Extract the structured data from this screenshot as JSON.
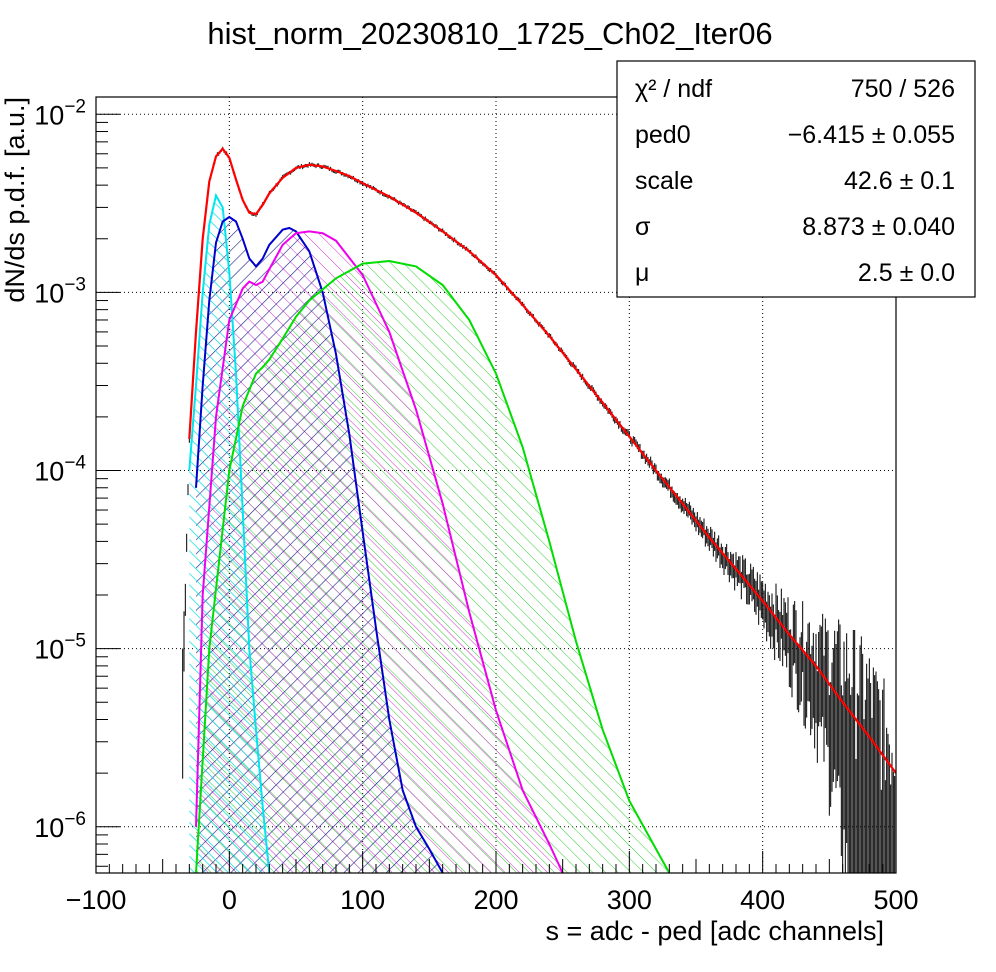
{
  "chart_data": {
    "type": "line",
    "title": "hist_norm_20230810_1725_Ch02_Iter06",
    "xlabel": "s = adc - ped [adc channels]",
    "ylabel": "dN/ds p.d.f. [a.u.]",
    "xlim": [
      -100,
      500
    ],
    "ylim": [
      5.5e-07,
      0.0125
    ],
    "yscale": "log",
    "grid": true,
    "x_ticks": [
      {
        "value": -100,
        "label": "−100"
      },
      {
        "value": 0,
        "label": "0"
      },
      {
        "value": 100,
        "label": "100"
      },
      {
        "value": 200,
        "label": "200"
      },
      {
        "value": 300,
        "label": "300"
      },
      {
        "value": 400,
        "label": "400"
      },
      {
        "value": 500,
        "label": "500"
      }
    ],
    "y_ticks": [
      {
        "value": 0.01,
        "base": "10",
        "exp": "−2"
      },
      {
        "value": 0.001,
        "base": "10",
        "exp": "−3"
      },
      {
        "value": 0.0001,
        "base": "10",
        "exp": "−4"
      },
      {
        "value": 1e-05,
        "base": "10",
        "exp": "−5"
      },
      {
        "value": 1e-06,
        "base": "10",
        "exp": "−6"
      }
    ],
    "stats_box": {
      "placement": "top-right",
      "rows": [
        {
          "label": "χ² / ndf",
          "value": "750 / 526"
        },
        {
          "label": "ped0",
          "value": "−6.415 ± 0.055"
        },
        {
          "label": "scale",
          "value": "42.6 ± 0.1"
        },
        {
          "label": "σ",
          "value": "8.873 ± 0.040"
        },
        {
          "label": "μ",
          "value": "2.5 ± 0.0"
        }
      ]
    },
    "series": [
      {
        "role": "data",
        "color": "#000000",
        "x": [
          -35,
          -30,
          -25,
          -20,
          -15,
          -10,
          -5,
          0,
          5,
          10,
          15,
          20,
          25,
          30,
          40,
          50,
          60,
          70,
          80,
          90,
          100,
          120,
          140,
          160,
          180,
          200,
          220,
          240,
          260,
          280,
          300,
          320,
          340,
          360,
          380,
          400,
          420,
          440,
          460,
          480,
          500
        ],
        "y": [
          6e-06,
          0.00015,
          0.0006,
          0.002,
          0.0042,
          0.0058,
          0.0064,
          0.0057,
          0.0043,
          0.0033,
          0.0028,
          0.00275,
          0.0031,
          0.0036,
          0.0044,
          0.005,
          0.0052,
          0.0051,
          0.0048,
          0.0045,
          0.0041,
          0.00345,
          0.0028,
          0.0022,
          0.0017,
          0.00125,
          0.00085,
          0.00057,
          0.00037,
          0.00024,
          0.000155,
          0.0001,
          6.5e-05,
          4.2e-05,
          2.8e-05,
          1.85e-05,
          1.2e-05,
          8e-06,
          5e-06,
          3.2e-06,
          1.5e-06
        ]
      },
      {
        "role": "fit",
        "color": "#ff0000",
        "x": [
          -30,
          -25,
          -20,
          -15,
          -10,
          -5,
          0,
          5,
          10,
          15,
          20,
          25,
          30,
          40,
          50,
          60,
          70,
          80,
          90,
          100,
          120,
          140,
          160,
          180,
          200,
          220,
          240,
          260,
          280,
          300,
          320,
          340,
          360,
          380,
          400,
          420,
          440,
          460,
          480,
          500
        ],
        "y": [
          0.00015,
          0.0006,
          0.002,
          0.0042,
          0.0058,
          0.0064,
          0.0057,
          0.0043,
          0.0033,
          0.0028,
          0.00275,
          0.0031,
          0.0036,
          0.0044,
          0.005,
          0.0052,
          0.0051,
          0.0048,
          0.0045,
          0.0041,
          0.00345,
          0.0028,
          0.0022,
          0.0017,
          0.00125,
          0.00085,
          0.00057,
          0.00037,
          0.00024,
          0.000155,
          0.0001,
          6.5e-05,
          4.2e-05,
          2.8e-05,
          1.85e-05,
          1.2e-05,
          8e-06,
          5e-06,
          3.2e-06,
          2e-06
        ]
      },
      {
        "role": "component",
        "color": "#00e5ee",
        "x": [
          -30,
          -25,
          -20,
          -15,
          -10,
          -5,
          0,
          5,
          10,
          15,
          20,
          25,
          30
        ],
        "y": [
          0.0001,
          0.0003,
          0.001,
          0.0024,
          0.0035,
          0.003,
          0.0013,
          0.00035,
          6e-05,
          1e-05,
          3.5e-06,
          1.3e-06,
          5.5e-07
        ]
      },
      {
        "role": "component",
        "color": "#0000cc",
        "x": [
          -25,
          -20,
          -15,
          -10,
          -5,
          0,
          5,
          10,
          15,
          20,
          25,
          30,
          40,
          45,
          50,
          60,
          70,
          80,
          90,
          100,
          110,
          120,
          130,
          140,
          150,
          160
        ],
        "y": [
          8e-05,
          0.0003,
          0.0009,
          0.0019,
          0.0025,
          0.00265,
          0.0025,
          0.002,
          0.00155,
          0.0014,
          0.00155,
          0.00185,
          0.00225,
          0.0023,
          0.0022,
          0.0017,
          0.001,
          0.00045,
          0.00016,
          4.5e-05,
          1.3e-05,
          4e-06,
          1.6e-06,
          1e-06,
          7.5e-07,
          5.5e-07
        ]
      },
      {
        "role": "component",
        "color": "#ee00ee",
        "x": [
          -25,
          -20,
          -10,
          0,
          10,
          15,
          20,
          25,
          30,
          40,
          50,
          60,
          70,
          80,
          100,
          120,
          140,
          160,
          180,
          200,
          220,
          240,
          250
        ],
        "y": [
          1e-06,
          2e-05,
          0.0002,
          0.0007,
          0.00105,
          0.00115,
          0.0011,
          0.00115,
          0.00135,
          0.00185,
          0.00215,
          0.0022,
          0.00215,
          0.00195,
          0.00125,
          0.0006,
          0.00022,
          6.5e-05,
          1.6e-05,
          4.5e-06,
          1.6e-06,
          8e-07,
          5.5e-07
        ]
      },
      {
        "role": "component",
        "color": "#00dd00",
        "x": [
          -25,
          -15,
          0,
          10,
          20,
          25,
          30,
          40,
          50,
          60,
          80,
          100,
          120,
          140,
          160,
          180,
          200,
          220,
          240,
          260,
          280,
          300,
          320,
          330
        ],
        "y": [
          5.5e-07,
          1e-05,
          0.0001,
          0.00023,
          0.00035,
          0.00038,
          0.00042,
          0.00055,
          0.00073,
          0.0009,
          0.0012,
          0.00145,
          0.0015,
          0.0014,
          0.0011,
          0.0007,
          0.00035,
          0.000135,
          4e-05,
          1.1e-05,
          3.5e-06,
          1.4e-06,
          7.5e-07,
          5.5e-07
        ]
      }
    ]
  }
}
